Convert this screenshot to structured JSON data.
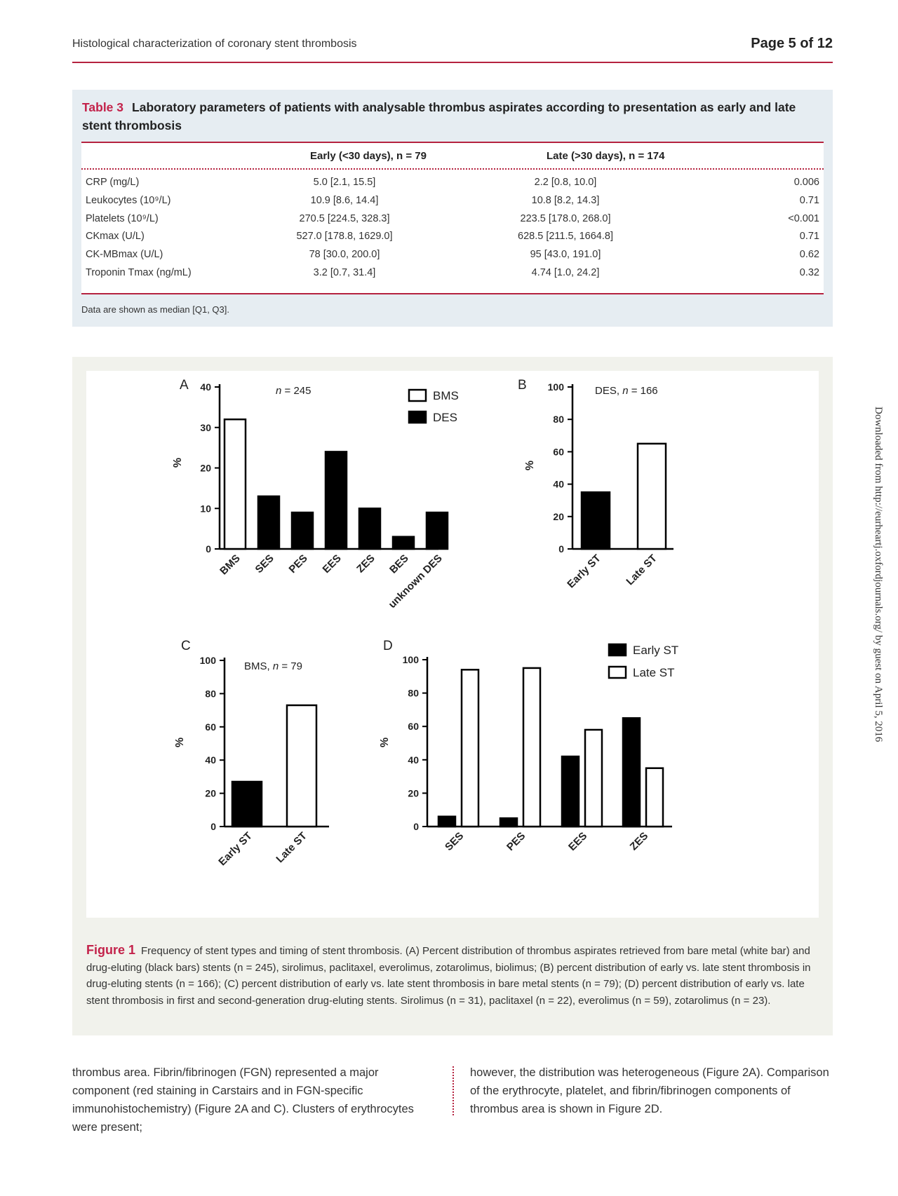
{
  "header": {
    "running_head": "Histological characterization of coronary stent thrombosis",
    "page_number": "Page 5 of 12"
  },
  "table": {
    "label": "Table 3",
    "title": "Laboratory parameters of patients with analysable thrombus aspirates according to presentation as early and late stent thrombosis",
    "col_early": "Early (<30 days), n = 79",
    "col_late": "Late (>30 days), n = 174",
    "rows": [
      {
        "param": "CRP (mg/L)",
        "early": "5.0 [2.1, 15.5]",
        "late": "2.2 [0.8, 10.0]",
        "p": "0.006"
      },
      {
        "param": "Leukocytes (10⁹/L)",
        "early": "10.9 [8.6, 14.4]",
        "late": "10.8 [8.2, 14.3]",
        "p": "0.71"
      },
      {
        "param": "Platelets (10⁹/L)",
        "early": "270.5 [224.5, 328.3]",
        "late": "223.5 [178.0, 268.0]",
        "p": "<0.001"
      },
      {
        "param": "CKmax (U/L)",
        "early": "527.0 [178.8, 1629.0]",
        "late": "628.5 [211.5, 1664.8]",
        "p": "0.71"
      },
      {
        "param": "CK-MBmax (U/L)",
        "early": "78 [30.0, 200.0]",
        "late": "95 [43.0, 191.0]",
        "p": "0.62"
      },
      {
        "param": "Troponin Tmax (ng/mL)",
        "early": "3.2 [0.7, 31.4]",
        "late": "4.74 [1.0, 24.2]",
        "p": "0.32"
      }
    ],
    "note": "Data are shown as median [Q1, Q3]."
  },
  "figure": {
    "label": "Figure 1",
    "caption": "Frequency of stent types and timing of stent thrombosis. (A) Percent distribution of thrombus aspirates retrieved from bare metal (white bar) and drug-eluting (black bars) stents (n = 245), sirolimus, paclitaxel, everolimus, zotarolimus, biolimus; (B) percent distribution of early vs. late stent thrombosis in drug-eluting stents (n = 166); (C) percent distribution of early vs. late stent thrombosis in bare metal stents (n = 79); (D) percent distribution of early vs. late stent thrombosis in first and second-generation drug-eluting stents. Sirolimus (n = 31), paclitaxel (n = 22), everolimus (n = 59), zotarolimus (n = 23)."
  },
  "chart_data": [
    {
      "panel": "A",
      "type": "bar",
      "ylabel": "%",
      "ylim": [
        0,
        40
      ],
      "yticks": [
        0,
        10,
        20,
        30,
        40
      ],
      "annotation": "n = 245",
      "legend": [
        "BMS",
        "DES"
      ],
      "categories": [
        "BMS",
        "SES",
        "PES",
        "EES",
        "ZES",
        "BES",
        "unknown DES"
      ],
      "values": [
        32,
        13,
        9,
        24,
        10,
        3,
        9
      ],
      "fills": [
        "#ffffff",
        "#000000",
        "#000000",
        "#000000",
        "#000000",
        "#000000",
        "#000000"
      ]
    },
    {
      "panel": "B",
      "type": "bar",
      "ylabel": "%",
      "ylim": [
        0,
        100
      ],
      "yticks": [
        0,
        20,
        40,
        60,
        80,
        100
      ],
      "annotation": "DES, n = 166",
      "categories": [
        "Early ST",
        "Late ST"
      ],
      "values": [
        35,
        65
      ],
      "fills": [
        "#000000",
        "#ffffff"
      ]
    },
    {
      "panel": "C",
      "type": "bar",
      "ylabel": "%",
      "ylim": [
        0,
        100
      ],
      "yticks": [
        0,
        20,
        40,
        60,
        80,
        100
      ],
      "annotation": "BMS, n = 79",
      "categories": [
        "Early ST",
        "Late ST"
      ],
      "values": [
        27,
        73
      ],
      "fills": [
        "#000000",
        "#ffffff"
      ]
    },
    {
      "panel": "D",
      "type": "bar",
      "ylabel": "%",
      "ylim": [
        0,
        100
      ],
      "yticks": [
        0,
        20,
        40,
        60,
        80,
        100
      ],
      "legend": [
        "Early ST",
        "Late ST"
      ],
      "categories": [
        "SES",
        "PES",
        "EES",
        "ZES"
      ],
      "series": [
        {
          "name": "Early ST",
          "values": [
            6,
            5,
            42,
            65
          ],
          "color": "#000000"
        },
        {
          "name": "Late ST",
          "values": [
            94,
            95,
            58,
            35
          ],
          "color": "#ffffff"
        }
      ]
    }
  ],
  "body": {
    "left": "thrombus area. Fibrin/fibrinogen (FGN) represented a major component (red staining in Carstairs and in FGN-specific immunohistochemistry) (Figure 2A and C). Clusters of erythrocytes were present;",
    "right": "however, the distribution was heterogeneous (Figure 2A). Comparison of the erythrocyte, platelet, and fibrin/fibrinogen components of thrombus area is shown in Figure 2D."
  },
  "side_note": "Downloaded from http://eurheartj.oxfordjournals.org/ by guest on April 5, 2016"
}
